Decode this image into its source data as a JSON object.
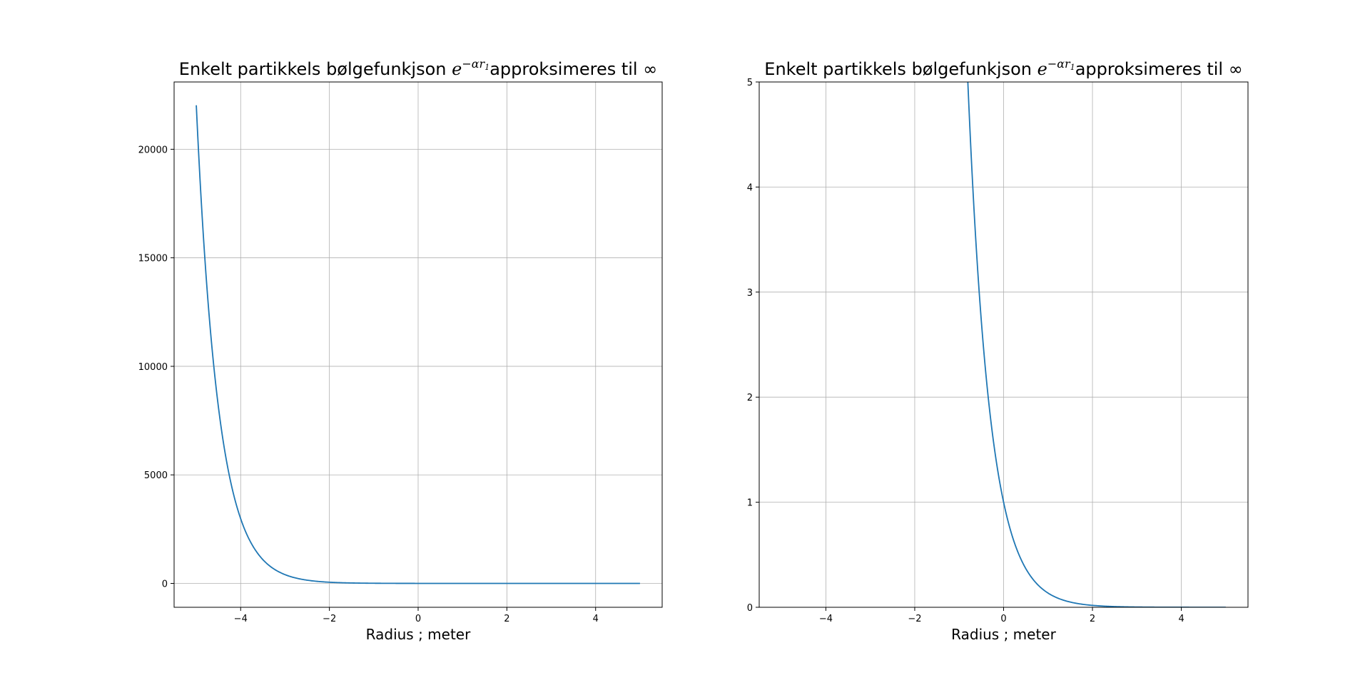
{
  "chart_data": [
    {
      "type": "line",
      "title_prefix": "Enkelt partikkels bølgefunkjson ",
      "title_math_base": "e",
      "title_math_exponent": "−αr",
      "title_math_subscript": "1",
      "title_suffix": "approksimeres til ∞",
      "xlabel": "Radius ; meter",
      "ylabel": "",
      "xlim": [
        -5.5,
        5.5
      ],
      "ylim": [
        -1100,
        23100
      ],
      "xticks": [
        -4,
        -2,
        0,
        2,
        4
      ],
      "xtick_labels": [
        "−4",
        "−2",
        "0",
        "2",
        "4"
      ],
      "yticks": [
        0,
        5000,
        10000,
        15000,
        20000
      ],
      "ytick_labels": [
        "0",
        "5000",
        "10000",
        "15000",
        "20000"
      ],
      "grid": true,
      "series": [
        {
          "function": "exp(-2*x)",
          "x_range": [
            -5,
            5
          ],
          "color": "#1f77b4"
        }
      ]
    },
    {
      "type": "line",
      "title_prefix": "Enkelt partikkels bølgefunkjson ",
      "title_math_base": "e",
      "title_math_exponent": "−αr",
      "title_math_subscript": "1",
      "title_suffix": "approksimeres til ∞",
      "xlabel": "Radius ; meter",
      "ylabel": "",
      "xlim": [
        -5.5,
        5.5
      ],
      "ylim": [
        0,
        5
      ],
      "xticks": [
        -4,
        -2,
        0,
        2,
        4
      ],
      "xtick_labels": [
        "−4",
        "−2",
        "0",
        "2",
        "4"
      ],
      "yticks": [
        0,
        1,
        2,
        3,
        4,
        5
      ],
      "ytick_labels": [
        "0",
        "1",
        "2",
        "3",
        "4",
        "5"
      ],
      "grid": true,
      "series": [
        {
          "function": "exp(-2*x)",
          "x_range": [
            -5,
            5
          ],
          "color": "#1f77b4"
        }
      ]
    }
  ]
}
